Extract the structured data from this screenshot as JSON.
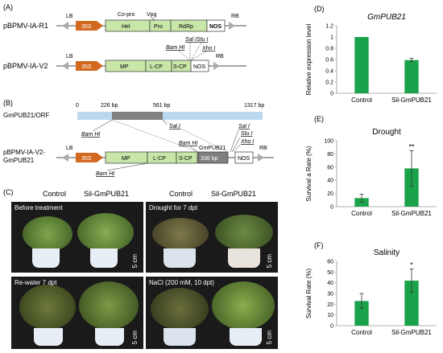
{
  "panelA": {
    "label": "(A)",
    "construct1": {
      "name": "pBPMV-IA-R1",
      "lb": "LB",
      "rb": "RB",
      "promoter": "35S",
      "labels_above": [
        "Co-pro",
        "Vpg"
      ],
      "blocks": [
        "Hel",
        "Pro",
        "RdRp"
      ],
      "terminator": "NOS"
    },
    "construct2": {
      "name": "pBPMV-IA-V2",
      "lb": "LB",
      "rb": "RB",
      "promoter": "35S",
      "blocks": [
        "MP",
        "L-CP",
        "S-CP"
      ],
      "terminator": "NOS",
      "sites": [
        "Bam HI",
        "Sal I",
        "Stu I",
        "Xho I"
      ]
    }
  },
  "panelB": {
    "label": "(B)",
    "orf": {
      "name": "GmPUB21/ORF",
      "ticks": [
        "0",
        "226 bp",
        "561 bp",
        "1317 bp"
      ],
      "sites": [
        "Bam HI",
        "Sal I"
      ]
    },
    "construct": {
      "name_line1": "pBPMV-IA-V2-",
      "name_line2": "GmPUB21",
      "lb": "LB",
      "rb": "RB",
      "promoter": "35S",
      "blocks": [
        "MP",
        "L-CP",
        "S-CP"
      ],
      "insert_title": "GmPUB21",
      "insert_size": "336 bp",
      "terminator": "NOS",
      "sites": [
        "Bam HI",
        "Bam HI",
        "Sal I",
        "Stu I",
        "Xho I"
      ]
    }
  },
  "panelC": {
    "label": "(C)",
    "headers": [
      "Control",
      "Sil-GmPUB21",
      "Control",
      "Sil-GmPUB21"
    ],
    "photos": [
      {
        "caption": "Before treatment",
        "scale": "5 cm"
      },
      {
        "caption": "Drought for 7 dpt",
        "scale": "5 cm"
      },
      {
        "caption": "Re-water 7 dpt",
        "scale": "5 cm"
      },
      {
        "caption": "NaCl (200 mM, 10 dpt)",
        "scale": "5 cm"
      }
    ]
  },
  "colors": {
    "bar_green": "#1aa34a",
    "promoter_orange": "#d2691e",
    "block_green": "#c8e6a8",
    "insert_gray": "#808080",
    "orf_blue": "#bcd8ee"
  },
  "chart_data": [
    {
      "panel": "(D)",
      "type": "bar",
      "title": "GmPUB21",
      "ylabel": "Relative expression level",
      "xlabel": "",
      "categories": [
        "Control",
        "Sil-GmPUB21"
      ],
      "values": [
        1.0,
        0.59
      ],
      "errors": [
        0,
        0.03
      ],
      "ylim": [
        0,
        1.2
      ],
      "yticks": [
        "0",
        "0.2",
        "0.4",
        "0.6",
        "0.8",
        "1",
        "1.2"
      ],
      "significance": [
        "",
        ""
      ]
    },
    {
      "panel": "(E)",
      "type": "bar",
      "title": "Drought",
      "ylabel": "Survival a Rate (%)",
      "xlabel": "",
      "categories": [
        "Control",
        "Sil-GmPUB21"
      ],
      "values": [
        13,
        58
      ],
      "errors": [
        6,
        27
      ],
      "ylim": [
        0,
        100
      ],
      "yticks": [
        "0",
        "20",
        "40",
        "60",
        "80",
        "100"
      ],
      "significance": [
        "",
        "**"
      ]
    },
    {
      "panel": "(F)",
      "type": "bar",
      "title": "Salinity",
      "ylabel": "Survival Rate (%)",
      "xlabel": "",
      "categories": [
        "Control",
        "Sil-GmPUB21"
      ],
      "values": [
        23,
        42
      ],
      "errors": [
        7,
        11
      ],
      "ylim": [
        0,
        60
      ],
      "yticks": [
        "0",
        "10",
        "20",
        "30",
        "40",
        "50",
        "60"
      ],
      "significance": [
        "",
        "*"
      ]
    }
  ]
}
